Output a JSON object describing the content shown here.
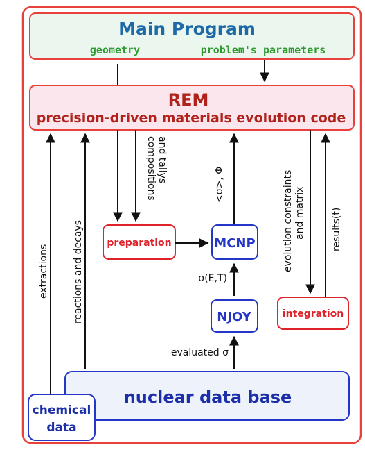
{
  "main_program": {
    "title": "Main Program",
    "geometry": "geometry",
    "problem_parameters": "problem's parameters"
  },
  "rem": {
    "title": "REM",
    "subtitle": "precision-driven materials evolution code"
  },
  "boxes": {
    "preparation": "preparation",
    "mcnp": "MCNP",
    "njoy": "NJOY",
    "integration": "integration",
    "nuclear_data_base": "nuclear data base",
    "chemical_line1": "chemical",
    "chemical_line2": "data"
  },
  "arrow_labels": {
    "extractions": "extractions",
    "reactions_decays": "reactions and decays",
    "compositions_line1": "compositions",
    "compositions_line2": "and tallys",
    "sigma_phi": "<σ>, Φ",
    "sigma_et": "σ(E,T)",
    "evaluated_sigma": "evaluated σ",
    "evolution_line1": "evolution constraints",
    "evolution_line2": "and matrix",
    "results": "results(t)"
  },
  "colors": {
    "outer_border": "#e8413c",
    "main_fill": "#eaf6ee",
    "main_border": "#e8413c",
    "main_title": "#1e6aa8",
    "main_sub": "#2f9a2f",
    "rem_fill": "#fbe6ee",
    "rem_text": "#b0221c",
    "red_box": "#e0222a",
    "blue_box": "#2436c8",
    "ndb_fill": "#eef3fb",
    "ndb_text": "#1c2fa8",
    "arrow": "#111111"
  }
}
